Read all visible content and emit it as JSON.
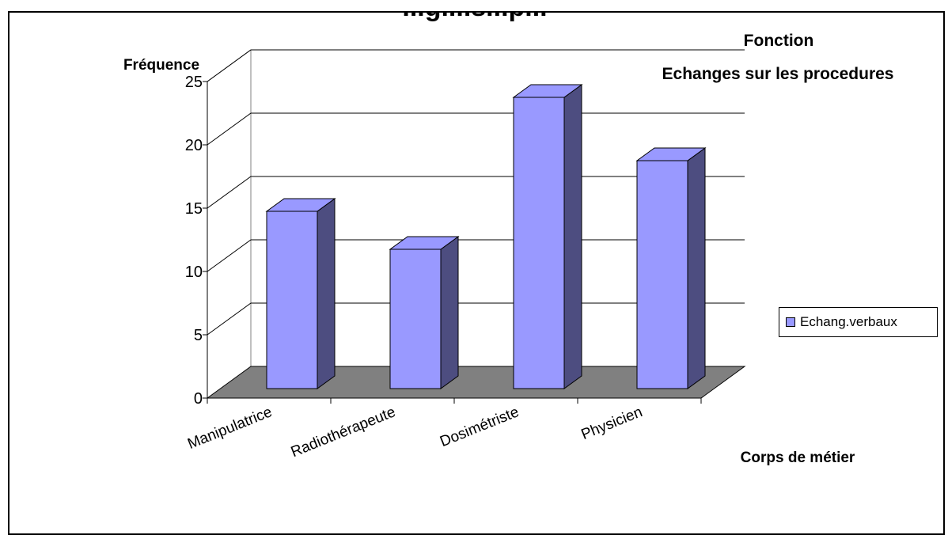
{
  "chart_data": {
    "type": "bar",
    "title_top": "...gi...s...p...",
    "title": "Fonction",
    "subtitle": "Echanges sur les procedures",
    "ylabel": "Fréquence",
    "xlabel": "Corps de métier",
    "categories": [
      "Manipulatrice",
      "Radiothérapeute",
      "Dosimétriste",
      "Physicien"
    ],
    "series": [
      {
        "name": "Echang.verbaux",
        "values": [
          14,
          11,
          23,
          18
        ],
        "color": "#9999FF",
        "side_color": "#4D4D80"
      }
    ],
    "ylim": [
      0,
      25
    ],
    "yticks": [
      "0",
      "5",
      "10",
      "15",
      "20",
      "25"
    ],
    "grid": true,
    "floor_color": "#808080",
    "legend_position": "right"
  }
}
